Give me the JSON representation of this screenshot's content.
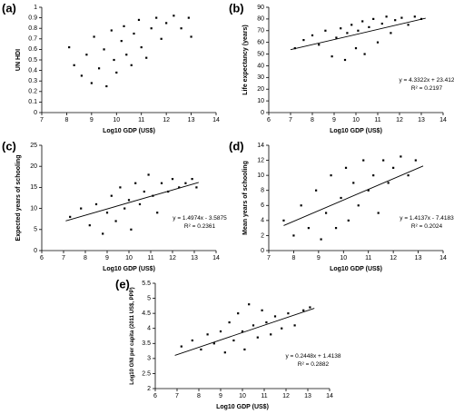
{
  "chart_data": [
    {
      "type": "scatter",
      "label": "(a)",
      "x_label": "Log10 GDP (US$)",
      "y_label": "UN HDI",
      "color": "#000000",
      "xlim": [
        7,
        14
      ],
      "xticks": [
        7,
        8,
        9,
        10,
        11,
        12,
        13,
        14
      ],
      "ylim": [
        0,
        1
      ],
      "yticks": [
        0,
        0.1,
        0.2,
        0.3,
        0.4,
        0.5,
        0.6,
        0.7,
        0.8,
        0.9,
        1
      ],
      "x": [
        8.1,
        8.3,
        8.6,
        8.8,
        9.0,
        9.1,
        9.3,
        9.5,
        9.6,
        9.8,
        9.9,
        10.0,
        10.2,
        10.3,
        10.4,
        10.6,
        10.7,
        10.9,
        11.0,
        11.2,
        11.4,
        11.6,
        11.8,
        12.0,
        12.3,
        12.6,
        12.9,
        13.0
      ],
      "values": [
        0.62,
        0.45,
        0.35,
        0.55,
        0.28,
        0.72,
        0.42,
        0.6,
        0.25,
        0.78,
        0.5,
        0.38,
        0.68,
        0.82,
        0.55,
        0.45,
        0.75,
        0.88,
        0.62,
        0.52,
        0.8,
        0.9,
        0.7,
        0.85,
        0.92,
        0.8,
        0.9,
        0.72
      ]
    },
    {
      "type": "scatter",
      "label": "(b)",
      "x_label": "Log10 GDP (US$)",
      "y_label": "Life expectancy (years)",
      "color": "#000000",
      "xlim": [
        6,
        14
      ],
      "xticks": [
        6,
        7,
        8,
        9,
        10,
        11,
        12,
        13,
        14
      ],
      "ylim": [
        0,
        90
      ],
      "yticks": [
        0,
        10,
        20,
        30,
        40,
        50,
        60,
        70,
        80,
        90
      ],
      "x": [
        7.2,
        7.6,
        8.0,
        8.3,
        8.6,
        8.9,
        9.1,
        9.3,
        9.5,
        9.6,
        9.8,
        10.0,
        10.1,
        10.3,
        10.4,
        10.6,
        10.8,
        11.0,
        11.2,
        11.4,
        11.6,
        11.8,
        12.1,
        12.4,
        12.7,
        13.0
      ],
      "values": [
        55,
        62,
        66,
        58,
        70,
        48,
        64,
        72,
        45,
        68,
        75,
        55,
        70,
        78,
        50,
        73,
        80,
        60,
        76,
        82,
        68,
        79,
        81,
        75,
        82,
        80
      ],
      "trendline": {
        "slope": 4.3322,
        "intercept": 23.412,
        "x_range": [
          7,
          13.2
        ]
      },
      "annotations": [
        "y = 4.3322x + 23.412",
        "R² = 0.2197"
      ]
    },
    {
      "type": "scatter",
      "label": "(c)",
      "x_label": "Log10 GDP (US$)",
      "y_label": "Expected years of schooling",
      "color": "#000000",
      "xlim": [
        6,
        14
      ],
      "xticks": [
        6,
        7,
        8,
        9,
        10,
        11,
        12,
        13,
        14
      ],
      "ylim": [
        0,
        25
      ],
      "yticks": [
        0,
        5,
        10,
        15,
        20,
        25
      ],
      "x": [
        7.3,
        7.8,
        8.2,
        8.5,
        8.8,
        9.0,
        9.2,
        9.4,
        9.6,
        9.8,
        10.0,
        10.1,
        10.3,
        10.5,
        10.7,
        10.9,
        11.1,
        11.3,
        11.5,
        11.8,
        12.0,
        12.3,
        12.6,
        12.9,
        13.1
      ],
      "values": [
        8,
        10,
        6,
        11,
        4,
        9,
        13,
        7,
        15,
        10,
        12,
        5,
        16,
        11,
        14,
        18,
        13,
        9,
        16,
        14,
        17,
        15,
        16,
        17,
        15
      ],
      "trendline": {
        "slope": 1.4974,
        "intercept": -3.5875,
        "x_range": [
          7.1,
          13.2
        ]
      },
      "annotations": [
        "y = 1.4974x - 3.5875",
        "R² = 0.2361"
      ]
    },
    {
      "type": "scatter",
      "label": "(d)",
      "x_label": "Log10 GDP (US$)",
      "y_label": "Mean years of schooling",
      "color": "#000000",
      "xlim": [
        7,
        14
      ],
      "xticks": [
        7,
        8,
        9,
        10,
        11,
        12,
        13,
        14
      ],
      "ylim": [
        0,
        14
      ],
      "yticks": [
        0,
        2,
        4,
        6,
        8,
        10,
        12,
        14
      ],
      "x": [
        7.6,
        8.0,
        8.3,
        8.6,
        8.9,
        9.1,
        9.3,
        9.5,
        9.7,
        9.9,
        10.1,
        10.2,
        10.4,
        10.6,
        10.8,
        11.0,
        11.2,
        11.4,
        11.6,
        11.8,
        12.0,
        12.3,
        12.6,
        12.9
      ],
      "values": [
        4,
        2,
        6,
        3,
        8,
        1.5,
        5,
        10,
        3,
        7,
        11,
        4,
        9,
        6,
        12,
        8,
        10,
        5,
        12,
        9,
        11,
        12.5,
        10,
        12
      ],
      "trendline": {
        "slope": 1.4137,
        "intercept": -7.4183,
        "x_range": [
          7.6,
          13.2
        ]
      },
      "annotations": [
        "y = 1.4137x - 7.4183",
        "R² = 0.2024"
      ]
    },
    {
      "type": "scatter",
      "label": "(e)",
      "x_label": "Log10 GDP (US$)",
      "y_label": "Log10 GNI per capita (2011 US$, PPP)",
      "color": "#000000",
      "xlim": [
        6,
        14
      ],
      "xticks": [
        6,
        7,
        8,
        9,
        10,
        11,
        12,
        13,
        14
      ],
      "ylim": [
        2,
        5.5
      ],
      "yticks": [
        2,
        2.5,
        3,
        3.5,
        4,
        4.5,
        5,
        5.5
      ],
      "x": [
        7.2,
        7.7,
        8.1,
        8.4,
        8.7,
        9.0,
        9.2,
        9.4,
        9.6,
        9.8,
        10.0,
        10.1,
        10.3,
        10.5,
        10.7,
        10.9,
        11.1,
        11.3,
        11.5,
        11.8,
        12.1,
        12.4,
        12.8,
        13.1
      ],
      "values": [
        3.4,
        3.6,
        3.3,
        3.8,
        3.5,
        3.9,
        3.2,
        4.2,
        3.6,
        4.5,
        3.9,
        3.3,
        4.8,
        4.1,
        3.7,
        4.6,
        4.2,
        3.8,
        4.4,
        4.0,
        4.5,
        4.1,
        4.6,
        4.7
      ],
      "trendline": {
        "slope": 0.2448,
        "intercept": 1.4138,
        "x_range": [
          6.9,
          13.3
        ]
      },
      "annotations": [
        "y = 0.2448x + 1.4138",
        "R² = 0.2882"
      ]
    }
  ]
}
